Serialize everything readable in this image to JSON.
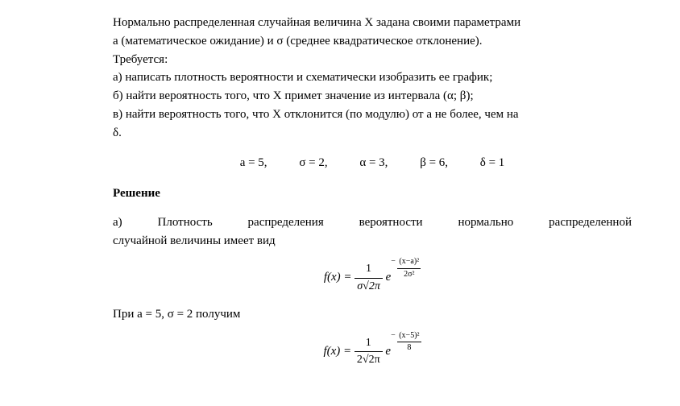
{
  "paragraphs": {
    "intro1": "Нормально распределенная случайная величина X задана своими параметрами",
    "intro2": "a (математическое ожидание) и σ (среднее квадратическое отклонение).",
    "treb": "Требуется:",
    "item_a": "а) написать плотность вероятности и схематически изобразить ее график;",
    "item_b": "б) найти вероятность того, что X примет значение из интервала (α; β);",
    "item_c1": "в) найти вероятность того, что X отклонится (по модулю) от a не более, чем на",
    "item_c2": "δ.",
    "solution_label": "Решение",
    "sol_a_line1": "а) Плотность распределения вероятности нормально распределенной",
    "sol_a_line2": "случайной величины имеет вид",
    "pri": "При a  =  5,  σ = 2 получим"
  },
  "params": {
    "a": "a  =  5,",
    "sigma": "σ = 2,",
    "alpha": "α = 3,",
    "beta": "β = 6,",
    "delta": "δ = 1"
  },
  "formula1": {
    "lhs": "f(x) = ",
    "num1": "1",
    "den1": "σ√2π",
    "e": "e",
    "exp_minus": "− ",
    "exp_num": "(x−a)²",
    "exp_den": "2σ²"
  },
  "formula2": {
    "lhs": "f(x) = ",
    "num1": "1",
    "den1": "2√2π",
    "e": "e",
    "exp_minus": "− ",
    "exp_num": "(x−5)²",
    "exp_den": "8"
  },
  "style": {
    "font_family": "Times New Roman",
    "font_size_body": 15,
    "text_color": "#000000",
    "background": "#ffffff"
  }
}
